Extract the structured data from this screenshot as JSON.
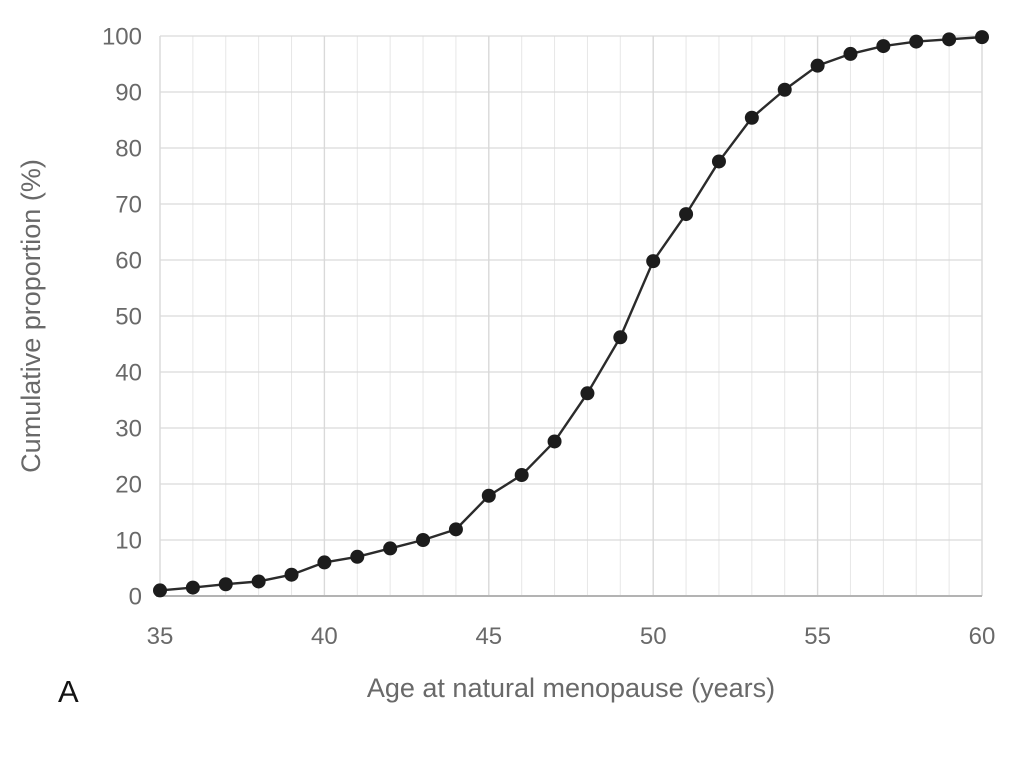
{
  "chart_data": {
    "type": "line",
    "title": "",
    "xlabel": "Age at natural menopause (years)",
    "ylabel": "Cumulative proportion (%)",
    "panel_label": "A",
    "series": [
      {
        "name": "Cumulative proportion",
        "x": [
          35,
          36,
          37,
          38,
          39,
          40,
          41,
          42,
          43,
          44,
          45,
          46,
          47,
          48,
          49,
          50,
          51,
          52,
          53,
          54,
          55,
          56,
          57,
          58,
          59,
          60
        ],
        "y": [
          1.0,
          1.5,
          2.1,
          2.6,
          3.8,
          6.0,
          7.0,
          8.5,
          10.0,
          11.9,
          17.9,
          21.6,
          27.6,
          36.2,
          46.2,
          59.8,
          68.2,
          77.6,
          85.4,
          90.4,
          94.7,
          96.8,
          98.2,
          99.0,
          99.4,
          99.8
        ]
      }
    ],
    "xlim": [
      35,
      60
    ],
    "ylim": [
      0,
      100
    ],
    "x_major_ticks": [
      35,
      40,
      45,
      50,
      55,
      60
    ],
    "x_minor_step": 1,
    "y_ticks": [
      0,
      10,
      20,
      30,
      40,
      50,
      60,
      70,
      80,
      90,
      100
    ],
    "grid": "on",
    "legend_position": "none",
    "marker": "filled-circle",
    "colors": {
      "background": "#ffffff",
      "line": "#2b2b2b",
      "marker": "#1c1c1c",
      "grid_minor": "#e7e7e7",
      "grid_major": "#d9d9d9",
      "axis_line": "#b3b3b3",
      "tick_label": "#696969",
      "axis_title": "#696969",
      "panel_label": "#141414"
    }
  }
}
